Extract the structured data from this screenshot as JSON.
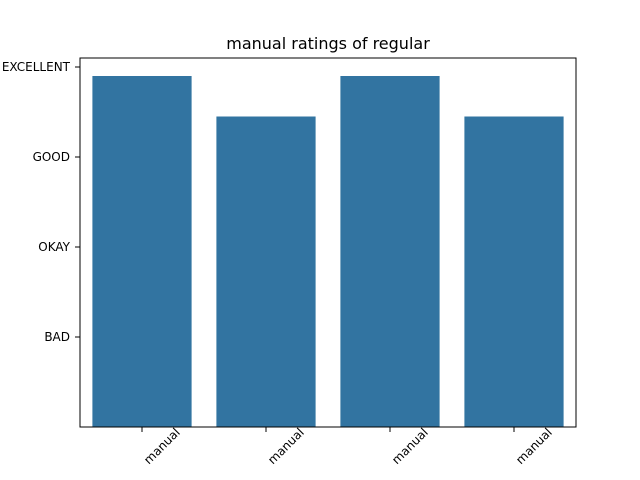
{
  "chart_data": {
    "type": "bar",
    "title": "manual ratings of regular",
    "xlabel": "",
    "ylabel": "",
    "categories": [
      "manual",
      "manual",
      "manual",
      "manual"
    ],
    "y_tick_labels": [
      "BAD",
      "OKAY",
      "GOOD",
      "EXCELLENT"
    ],
    "y_tick_values": [
      1,
      2,
      3,
      4
    ],
    "values": [
      3.9,
      3.45,
      3.9,
      3.45
    ],
    "ylim": [
      0,
      4.1
    ],
    "grid": false,
    "legend": "none",
    "bar_color": "#3274a1"
  }
}
